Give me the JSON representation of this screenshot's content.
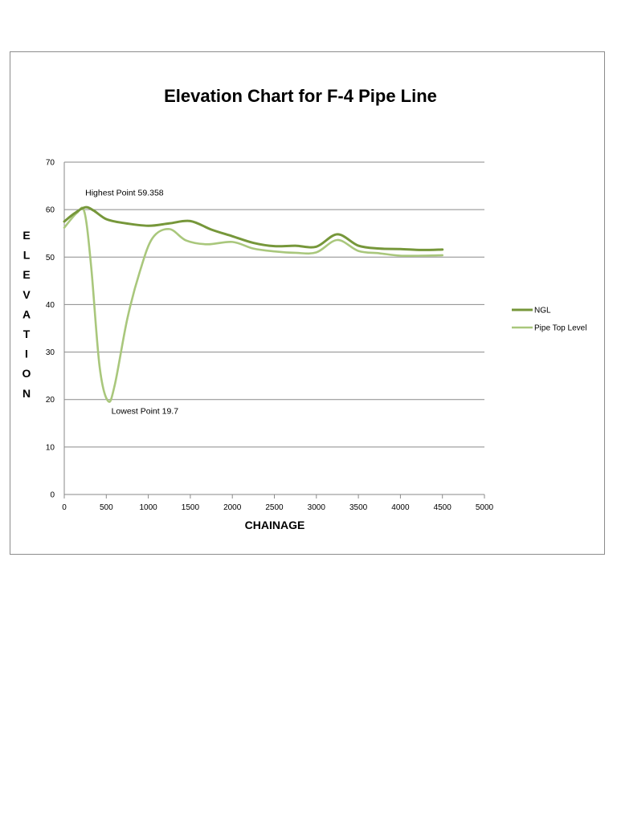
{
  "chart_data": {
    "type": "line",
    "title": "Elevation Chart for F-4 Pipe Line",
    "xlabel": "CHAINAGE",
    "ylabel": "ELEVATION",
    "xlim": [
      0,
      5000
    ],
    "ylim": [
      0,
      70
    ],
    "x_ticks": [
      "0",
      "500",
      "1000",
      "1500",
      "2000",
      "2500",
      "3000",
      "3500",
      "4000",
      "4500",
      "5000"
    ],
    "y_ticks": [
      "0",
      "10",
      "20",
      "30",
      "40",
      "50",
      "60",
      "70"
    ],
    "grid": "horizontal",
    "legend_position": "right",
    "series": [
      {
        "name": "NGL",
        "color": "#76973a",
        "x": [
          0,
          120,
          250,
          350,
          500,
          700,
          1000,
          1250,
          1500,
          1750,
          2000,
          2250,
          2500,
          2750,
          3000,
          3250,
          3500,
          3750,
          4000,
          4250,
          4500
        ],
        "y": [
          57.5,
          59.2,
          60.5,
          59.8,
          58.0,
          57.2,
          56.6,
          57.1,
          57.6,
          55.8,
          54.4,
          53.0,
          52.3,
          52.4,
          52.2,
          54.8,
          52.4,
          51.8,
          51.7,
          51.5,
          51.6
        ]
      },
      {
        "name": "Pipe Top Level",
        "color": "#a9c77c",
        "x": [
          0,
          150,
          240,
          320,
          420,
          520,
          600,
          750,
          900,
          1050,
          1250,
          1450,
          1700,
          2000,
          2250,
          2500,
          2750,
          3000,
          3250,
          3500,
          3750,
          4000,
          4250,
          4500
        ],
        "y": [
          56.2,
          59.3,
          59.5,
          48.0,
          27.0,
          19.7,
          23.0,
          37.0,
          47.0,
          54.0,
          55.9,
          53.5,
          52.7,
          53.2,
          51.8,
          51.2,
          50.9,
          51.0,
          53.6,
          51.3,
          50.8,
          50.3,
          50.3,
          50.4
        ]
      }
    ],
    "annotations": [
      {
        "text": "Highest Point 59.358",
        "x": 250,
        "y": 63
      },
      {
        "text": "Lowest Point 19.7",
        "x": 560,
        "y": 17
      }
    ]
  }
}
